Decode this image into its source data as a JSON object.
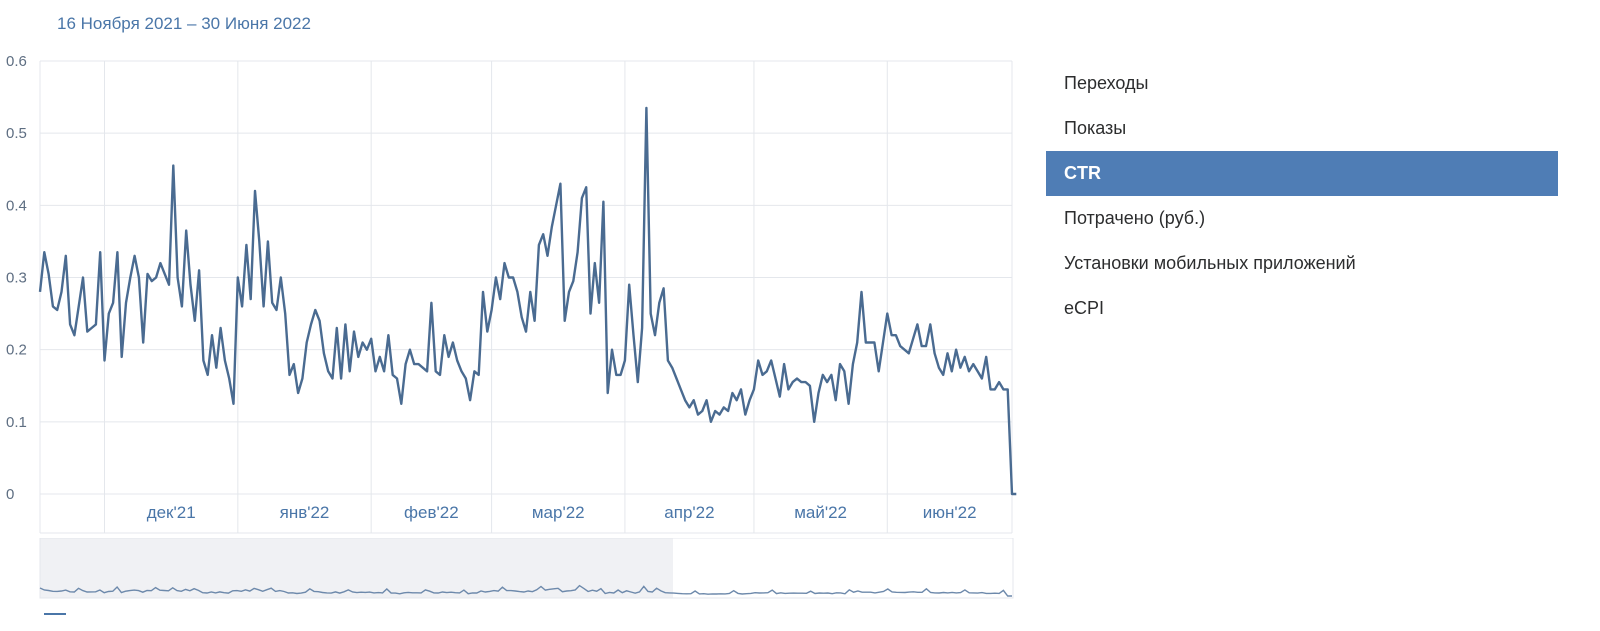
{
  "date_range": "16 Ноября 2021 – 30 Июня 2022",
  "metrics": [
    {
      "label": "Переходы",
      "active": false
    },
    {
      "label": "Показы",
      "active": false
    },
    {
      "label": "CTR",
      "active": true
    },
    {
      "label": "Потрачено (руб.)",
      "active": false
    },
    {
      "label": "Установки мобильных приложений",
      "active": false
    },
    {
      "label": "eCPI",
      "active": false
    }
  ],
  "colors": {
    "line": "#4a6b91",
    "grid": "#e4e7ec",
    "accent": "#4f7db5"
  },
  "chart_data": {
    "type": "line",
    "title": "",
    "xlabel": "",
    "ylabel": "",
    "ylim": [
      0,
      0.6
    ],
    "yticks": [
      0,
      0.1,
      0.2,
      0.3,
      0.4,
      0.5,
      0.6
    ],
    "xticks": [
      {
        "label": "дек'21",
        "date": "2021-12-01"
      },
      {
        "label": "янв'22",
        "date": "2022-01-01"
      },
      {
        "label": "фев'22",
        "date": "2022-02-01"
      },
      {
        "label": "мар'22",
        "date": "2022-03-01"
      },
      {
        "label": "апр'22",
        "date": "2022-04-01"
      },
      {
        "label": "май'22",
        "date": "2022-05-01"
      },
      {
        "label": "июн'22",
        "date": "2022-06-01"
      }
    ],
    "xlim": [
      "2021-11-16",
      "2022-06-30"
    ],
    "grid": true,
    "series": [
      {
        "name": "CTR",
        "x_start": "2021-11-16",
        "x_step_days": 1,
        "values": [
          0.28,
          0.335,
          0.305,
          0.26,
          0.255,
          0.28,
          0.33,
          0.235,
          0.22,
          0.26,
          0.3,
          0.225,
          0.23,
          0.235,
          0.335,
          0.185,
          0.25,
          0.265,
          0.335,
          0.19,
          0.265,
          0.3,
          0.33,
          0.3,
          0.21,
          0.305,
          0.295,
          0.3,
          0.32,
          0.305,
          0.29,
          0.455,
          0.3,
          0.26,
          0.365,
          0.29,
          0.24,
          0.31,
          0.185,
          0.165,
          0.22,
          0.175,
          0.23,
          0.185,
          0.16,
          0.125,
          0.3,
          0.26,
          0.345,
          0.27,
          0.42,
          0.35,
          0.26,
          0.35,
          0.265,
          0.255,
          0.3,
          0.25,
          0.165,
          0.18,
          0.14,
          0.16,
          0.21,
          0.235,
          0.255,
          0.24,
          0.195,
          0.17,
          0.16,
          0.23,
          0.16,
          0.235,
          0.17,
          0.225,
          0.19,
          0.21,
          0.2,
          0.215,
          0.17,
          0.19,
          0.17,
          0.22,
          0.165,
          0.16,
          0.125,
          0.18,
          0.2,
          0.18,
          0.18,
          0.175,
          0.17,
          0.265,
          0.17,
          0.165,
          0.22,
          0.19,
          0.21,
          0.185,
          0.17,
          0.16,
          0.13,
          0.17,
          0.165,
          0.28,
          0.225,
          0.255,
          0.3,
          0.27,
          0.32,
          0.3,
          0.3,
          0.28,
          0.245,
          0.225,
          0.28,
          0.24,
          0.345,
          0.36,
          0.33,
          0.37,
          0.4,
          0.43,
          0.24,
          0.28,
          0.295,
          0.335,
          0.41,
          0.425,
          0.25,
          0.32,
          0.265,
          0.405,
          0.14,
          0.2,
          0.165,
          0.165,
          0.185,
          0.29,
          0.22,
          0.155,
          0.23,
          0.535,
          0.25,
          0.22,
          0.265,
          0.285,
          0.185,
          0.175,
          0.16,
          0.145,
          0.13,
          0.12,
          0.13,
          0.11,
          0.115,
          0.13,
          0.1,
          0.115,
          0.11,
          0.12,
          0.115,
          0.14,
          0.13,
          0.145,
          0.11,
          0.13,
          0.145,
          0.185,
          0.165,
          0.17,
          0.185,
          0.16,
          0.135,
          0.18,
          0.145,
          0.155,
          0.16,
          0.155,
          0.155,
          0.15,
          0.1,
          0.14,
          0.165,
          0.155,
          0.165,
          0.13,
          0.18,
          0.17,
          0.125,
          0.18,
          0.21,
          0.28,
          0.21,
          0.21,
          0.21,
          0.17,
          0.21,
          0.25,
          0.22,
          0.22,
          0.205,
          0.2,
          0.195,
          0.215,
          0.235,
          0.205,
          0.205,
          0.235,
          0.195,
          0.175,
          0.165,
          0.195,
          0.17,
          0.2,
          0.175,
          0.19,
          0.17,
          0.18,
          0.17,
          0.16,
          0.19,
          0.145,
          0.145,
          0.155,
          0.145,
          0.145,
          0.0,
          0.0
        ]
      }
    ]
  }
}
